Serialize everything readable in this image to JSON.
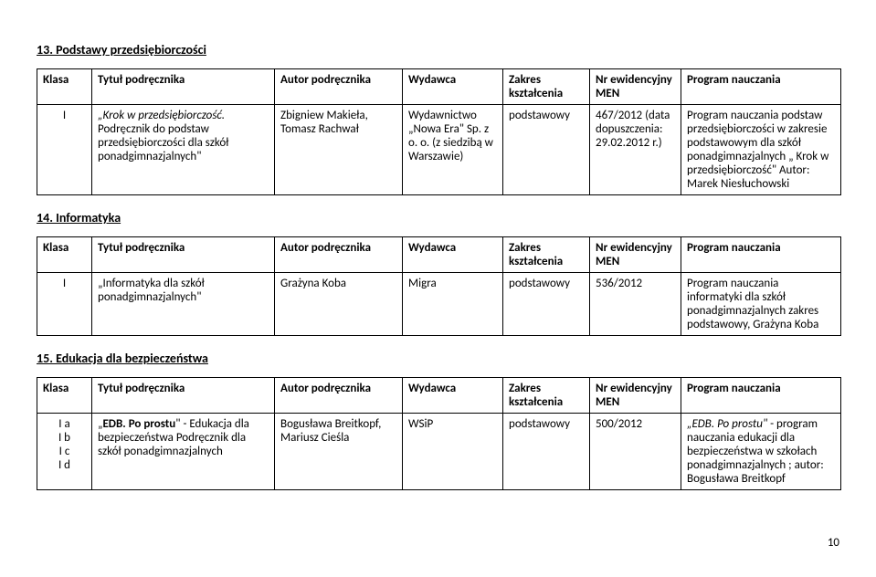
{
  "section13": {
    "title": "13. Podstawy przedsiębiorczości",
    "headers": {
      "klasa": "Klasa",
      "tytul": "Tytuł podręcznika",
      "autor": "Autor podręcznika",
      "wydawca": "Wydawca",
      "zakres": "Zakres kształcenia",
      "nr": "Nr ewidencyjny MEN",
      "program": "Program nauczania"
    },
    "row": {
      "klasa": "I",
      "tytul_part1": "„Krok w przedsiębiorczość.",
      "tytul_part2": " Podręcznik do podstaw przedsiębiorczości dla szkół ponadgimnazjalnych\"",
      "autor": "Zbigniew Makieła, Tomasz Rachwał",
      "wydawca": "Wydawnictwo „Nowa Era\" Sp. z o. o. (z siedzibą w Warszawie)",
      "zakres": "podstawowy",
      "nr": "467/2012 (data dopuszczenia: 29.02.2012 r.)",
      "program": "Program nauczania podstaw przedsiębiorczości w zakresie podstawowym dla szkół ponadgimnazjalnych „ Krok w przedsiębiorczość\" Autor: Marek Niesłuchowski"
    }
  },
  "section14": {
    "title": "14. Informatyka",
    "headers": {
      "klasa": "Klasa",
      "tytul": "Tytuł podręcznika",
      "autor": "Autor podręcznika",
      "wydawca": "Wydawca",
      "zakres": "Zakres kształcenia",
      "nr": "Nr ewidencyjny MEN",
      "program": "Program nauczania"
    },
    "row": {
      "klasa": "I",
      "tytul": "„Informatyka dla szkół ponadgimnazjalnych\"",
      "autor": "Grażyna Koba",
      "wydawca": "Migra",
      "zakres": "podstawowy",
      "nr": "536/2012",
      "program": "Program nauczania informatyki dla szkół ponadgimnazjalnych zakres podstawowy, Grażyna Koba"
    }
  },
  "section15": {
    "title": "15. Edukacja dla bezpieczeństwa",
    "headers": {
      "klasa": "Klasa",
      "tytul": "Tytuł podręcznika",
      "autor": "Autor podręcznika",
      "wydawca": "Wydawca",
      "zakres": "Zakres kształcenia",
      "nr": "Nr ewidencyjny MEN",
      "program": "Program nauczania"
    },
    "row": {
      "klasa_a": "I a",
      "klasa_b": "I b",
      "klasa_c": "I c",
      "klasa_d": "I d",
      "tytul_bold": "EDB. Po prostu",
      "tytul_rest": " - Edukacja dla bezpieczeństwa Podręcznik dla szkół ponadgimnazjalnych",
      "autor": "Bogusława Breitkopf, Mariusz Cieśla",
      "wydawca": "WSiP",
      "zakres": "podstawowy",
      "nr": "500/2012",
      "program_italic": "„EDB. Po prostu\"",
      "program_rest": " - program nauczania edukacji dla bezpieczeństwa w szkołach ponadgimnazjalnych ; autor: Bogusława Breitkopf"
    }
  },
  "page_number": "10"
}
